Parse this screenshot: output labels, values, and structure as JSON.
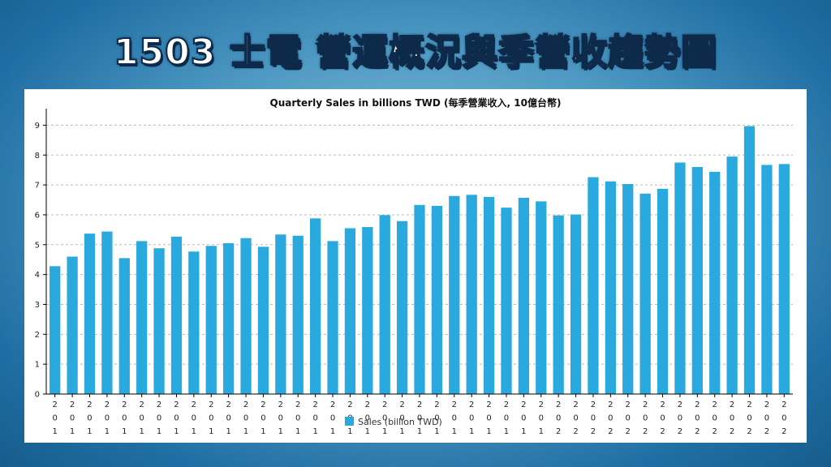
{
  "page_title": "1503 士電 營運概況與季營收趨勢圖",
  "colors": {
    "bar": "#29a9de",
    "grid": "#bbbbbb",
    "axis": "#000000"
  },
  "chart_data": {
    "type": "bar",
    "title": "Quarterly Sales in billions TWD (每季營業收入, 10億台幣)",
    "xlabel": "",
    "ylabel": "",
    "ylim": [
      0,
      9.5
    ],
    "yticks": [
      0,
      1,
      2,
      3,
      4,
      5,
      6,
      7,
      8,
      9
    ],
    "grid": true,
    "legend_position": "bottom-center",
    "series": [
      {
        "name": "Sales (billion TWD)",
        "values": [
          4.28,
          4.6,
          5.37,
          5.44,
          4.55,
          5.12,
          4.88,
          5.27,
          4.77,
          4.96,
          5.05,
          5.22,
          4.93,
          5.34,
          5.3,
          5.88,
          5.12,
          5.55,
          5.59,
          5.99,
          5.79,
          6.33,
          6.3,
          6.63,
          6.67,
          6.6,
          6.24,
          6.57,
          6.45,
          5.98,
          6.01,
          7.26,
          7.12,
          7.03,
          6.71,
          6.87,
          7.75,
          7.6,
          7.44,
          7.95,
          8.97,
          7.67,
          7.7
        ]
      }
    ],
    "category_labels": [
      [
        "2",
        "0",
        "1"
      ],
      [
        "2",
        "0",
        "1"
      ],
      [
        "2",
        "0",
        "1"
      ],
      [
        "2",
        "0",
        "1"
      ],
      [
        "2",
        "0",
        "1"
      ],
      [
        "2",
        "0",
        "1"
      ],
      [
        "2",
        "0",
        "1"
      ],
      [
        "2",
        "0",
        "1"
      ],
      [
        "2",
        "0",
        "1"
      ],
      [
        "2",
        "0",
        "1"
      ],
      [
        "2",
        "0",
        "1"
      ],
      [
        "2",
        "0",
        "1"
      ],
      [
        "2",
        "0",
        "1"
      ],
      [
        "2",
        "0",
        "1"
      ],
      [
        "2",
        "0",
        "1"
      ],
      [
        "2",
        "0",
        "1"
      ],
      [
        "2",
        "0",
        "1"
      ],
      [
        "2",
        "0",
        "1"
      ],
      [
        "2",
        "0",
        "1"
      ],
      [
        "2",
        "0",
        "1"
      ],
      [
        "2",
        "0",
        "1"
      ],
      [
        "2",
        "0",
        "1"
      ],
      [
        "2",
        "0",
        "1"
      ],
      [
        "2",
        "0",
        "1"
      ],
      [
        "2",
        "0",
        "1"
      ],
      [
        "2",
        "0",
        "1"
      ],
      [
        "2",
        "0",
        "1"
      ],
      [
        "2",
        "0",
        "1"
      ],
      [
        "2",
        "0",
        "1"
      ],
      [
        "2",
        "0",
        "2"
      ],
      [
        "2",
        "0",
        "2"
      ],
      [
        "2",
        "0",
        "2"
      ],
      [
        "2",
        "0",
        "2"
      ],
      [
        "2",
        "0",
        "2"
      ],
      [
        "2",
        "0",
        "2"
      ],
      [
        "2",
        "0",
        "2"
      ],
      [
        "2",
        "0",
        "2"
      ],
      [
        "2",
        "0",
        "2"
      ],
      [
        "2",
        "0",
        "2"
      ],
      [
        "2",
        "0",
        "2"
      ],
      [
        "2",
        "0",
        "2"
      ],
      [
        "2",
        "0",
        "2"
      ],
      [
        "2",
        "0",
        "2"
      ]
    ]
  }
}
